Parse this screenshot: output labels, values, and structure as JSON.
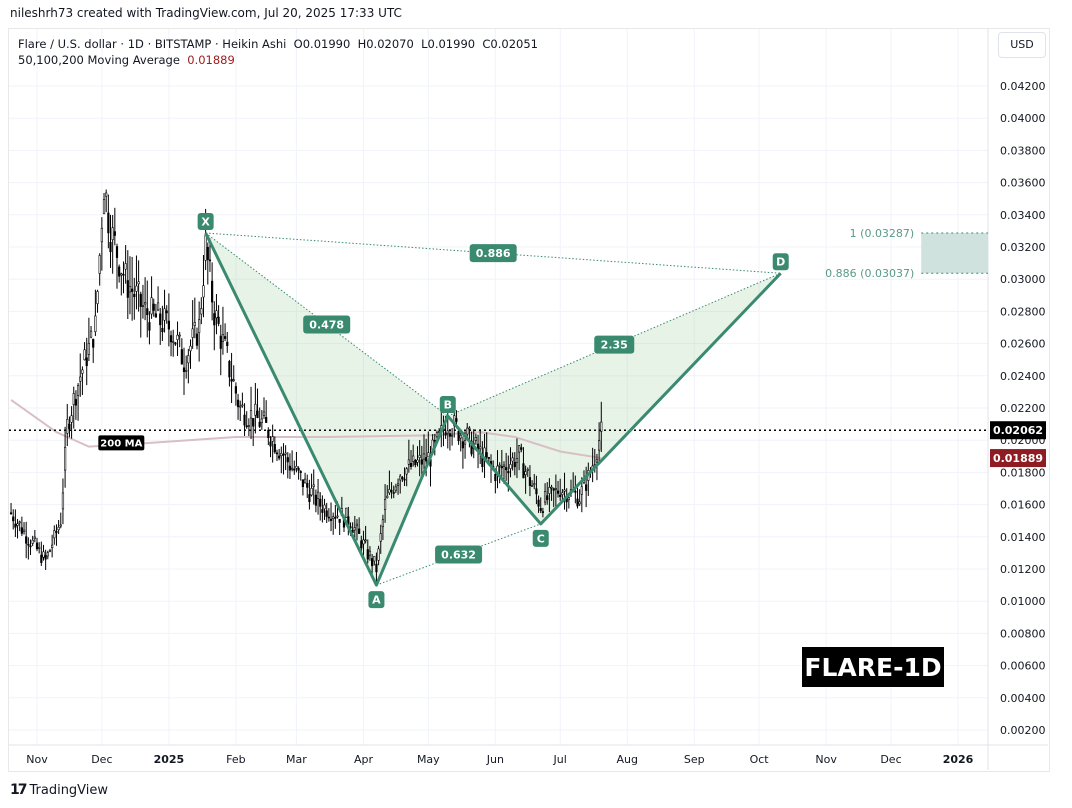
{
  "header": {
    "credit": "nileshrh73 created with TradingView.com, Jul 20, 2025 17:33 UTC"
  },
  "legend": {
    "symbol_line": "Flare / U.S. dollar · 1D · BITSTAMP · Heikin Ashi  O0.01990  H0.02070  L0.01990  C0.02051",
    "ma_label": "50,100,200 Moving Average",
    "ma_value": "0.01889"
  },
  "currency_button": "USD",
  "watermark": "FLARE-1D",
  "footer_logo": "TradingView",
  "chart_data": {
    "type": "candlestick",
    "style": "Heikin Ashi",
    "ylim": [
      0.001,
      0.0432
    ],
    "y_ticks": [
      "0.04200",
      "0.04000",
      "0.03800",
      "0.03600",
      "0.03400",
      "0.03200",
      "0.03000",
      "0.02800",
      "0.02600",
      "0.02400",
      "0.02200",
      "0.02000",
      "0.01800",
      "0.01600",
      "0.01400",
      "0.01200",
      "0.01000",
      "0.00800",
      "0.00600",
      "0.00400",
      "0.00200"
    ],
    "x_ticks": [
      {
        "label": "Nov",
        "date": "2024-11-01"
      },
      {
        "label": "Dec",
        "date": "2024-12-01"
      },
      {
        "label": "2025",
        "date": "2025-01-01",
        "bold": true
      },
      {
        "label": "Feb",
        "date": "2025-02-01"
      },
      {
        "label": "Mar",
        "date": "2025-03-01"
      },
      {
        "label": "Apr",
        "date": "2025-04-01"
      },
      {
        "label": "May",
        "date": "2025-05-01"
      },
      {
        "label": "Jun",
        "date": "2025-06-01"
      },
      {
        "label": "Jul",
        "date": "2025-07-01"
      },
      {
        "label": "Aug",
        "date": "2025-08-01"
      },
      {
        "label": "Sep",
        "date": "2025-09-01"
      },
      {
        "label": "Oct",
        "date": "2025-10-01"
      },
      {
        "label": "Nov",
        "date": "2025-11-01"
      },
      {
        "label": "Dec",
        "date": "2025-12-01"
      },
      {
        "label": "2026",
        "date": "2026-01-01",
        "bold": true
      }
    ],
    "price_path": [
      [
        "2024-10-20",
        0.0155
      ],
      [
        "2024-11-02",
        0.013
      ],
      [
        "2024-11-05",
        0.0125
      ],
      [
        "2024-11-12",
        0.015
      ],
      [
        "2024-11-15",
        0.021
      ],
      [
        "2024-11-21",
        0.024
      ],
      [
        "2024-11-28",
        0.027
      ],
      [
        "2024-12-02",
        0.036
      ],
      [
        "2024-12-05",
        0.033
      ],
      [
        "2024-12-12",
        0.03
      ],
      [
        "2024-12-21",
        0.028
      ],
      [
        "2025-01-02",
        0.027
      ],
      [
        "2025-01-08",
        0.025
      ],
      [
        "2025-01-15",
        0.027
      ],
      [
        "2025-01-18",
        0.032
      ],
      [
        "2025-01-22",
        0.028
      ],
      [
        "2025-02-03",
        0.022
      ],
      [
        "2025-02-14",
        0.021
      ],
      [
        "2025-02-26",
        0.0185
      ],
      [
        "2025-03-12",
        0.016
      ],
      [
        "2025-03-26",
        0.015
      ],
      [
        "2025-04-07",
        0.012
      ],
      [
        "2025-04-11",
        0.016
      ],
      [
        "2025-04-18",
        0.018
      ],
      [
        "2025-05-02",
        0.019
      ],
      [
        "2025-05-10",
        0.0212
      ],
      [
        "2025-05-20",
        0.02
      ],
      [
        "2025-06-01",
        0.018
      ],
      [
        "2025-06-12",
        0.019
      ],
      [
        "2025-06-22",
        0.016
      ],
      [
        "2025-07-01",
        0.017
      ],
      [
        "2025-07-10",
        0.0165
      ],
      [
        "2025-07-15",
        0.018
      ],
      [
        "2025-07-20",
        0.0205
      ]
    ],
    "moving_average_200": {
      "label": "200 MA",
      "color": "#d8bfc4",
      "points": [
        [
          "2024-10-20",
          0.0225
        ],
        [
          "2024-11-10",
          0.0205
        ],
        [
          "2024-11-25",
          0.0196
        ],
        [
          "2024-12-20",
          0.0198
        ],
        [
          "2025-02-01",
          0.0202
        ],
        [
          "2025-03-15",
          0.0202
        ],
        [
          "2025-05-01",
          0.0203
        ],
        [
          "2025-05-25",
          0.0205
        ],
        [
          "2025-06-10",
          0.0202
        ],
        [
          "2025-07-01",
          0.0193
        ],
        [
          "2025-07-20",
          0.01889
        ]
      ]
    },
    "last_price": {
      "value": "0.02062",
      "color": "#000000"
    },
    "ma_price": {
      "value": "0.01889",
      "color": "#8e1c22"
    },
    "harmonic_pattern": {
      "color": "#3a8a70",
      "points": [
        {
          "label": "X",
          "date": "2025-01-18",
          "price": 0.03287
        },
        {
          "label": "A",
          "date": "2025-04-07",
          "price": 0.011
        },
        {
          "label": "B",
          "date": "2025-05-10",
          "price": 0.0215
        },
        {
          "label": "C",
          "date": "2025-06-22",
          "price": 0.0148
        },
        {
          "label": "D",
          "date": "2025-10-11",
          "price": 0.03037
        }
      ],
      "ratios": [
        {
          "label": "0.886",
          "from": "X",
          "to": "D"
        },
        {
          "label": "0.478",
          "from": "X",
          "to": "B"
        },
        {
          "label": "2.35",
          "from": "B",
          "to": "D"
        },
        {
          "label": "0.632",
          "from": "A",
          "to": "C"
        }
      ]
    },
    "target_zone": {
      "top_label": "1 (0.03287)",
      "top": 0.03287,
      "bottom_label": "0.886 (0.03037)",
      "bottom": 0.03037,
      "start": "2025-12-15",
      "end": "2026-02-10"
    }
  }
}
